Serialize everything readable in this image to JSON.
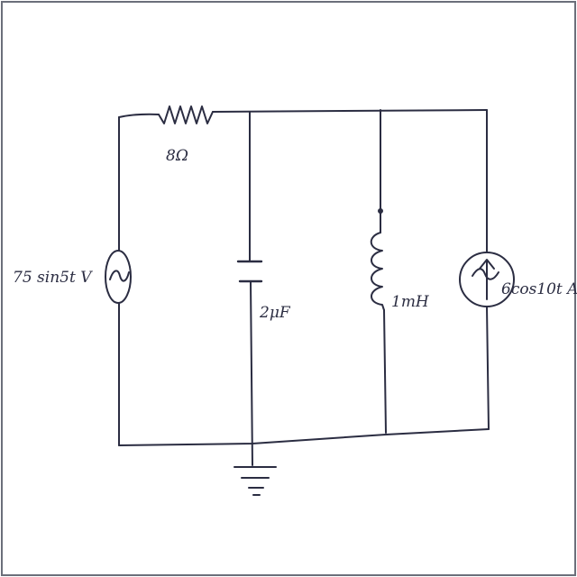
{
  "colors": {
    "ink": "#2b2d42",
    "paper": "#ffffff",
    "frame": "#6b6f7a"
  },
  "circuit": {
    "voltage_source": {
      "label": "75 sin5t V",
      "icon": "ac-voltage-source-icon"
    },
    "resistor": {
      "label": "8Ω",
      "icon": "resistor-icon"
    },
    "capacitor": {
      "label": "2μF",
      "icon": "capacitor-icon"
    },
    "inductor": {
      "label": "1mH",
      "icon": "inductor-icon"
    },
    "current_source": {
      "label": "6cos10t A",
      "icon": "ac-current-source-icon"
    },
    "ground": {
      "icon": "ground-icon"
    }
  }
}
